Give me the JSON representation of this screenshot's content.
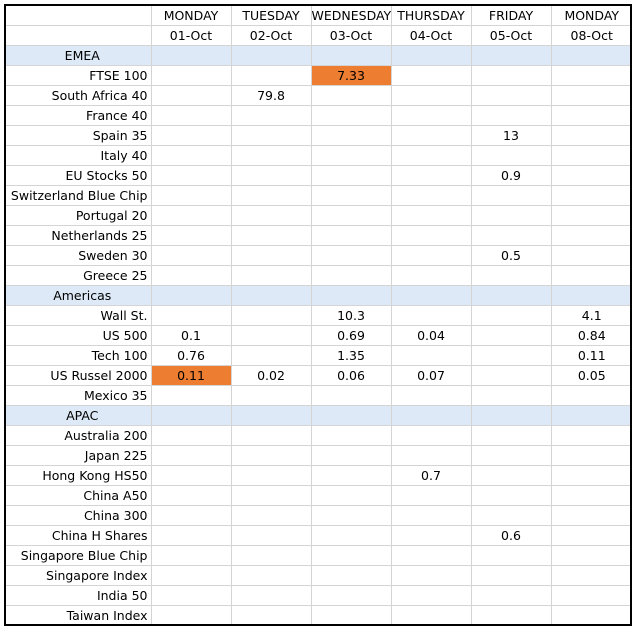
{
  "header": {
    "days": [
      "MONDAY",
      "TUESDAY",
      "WEDNESDAY",
      "THURSDAY",
      "FRIDAY",
      "MONDAY"
    ],
    "dates": [
      "01-Oct",
      "02-Oct",
      "03-Oct",
      "04-Oct",
      "05-Oct",
      "08-Oct"
    ]
  },
  "rows": [
    {
      "label": "EMEA",
      "section": true,
      "cells": [
        "",
        "",
        "",
        "",
        "",
        ""
      ]
    },
    {
      "label": "FTSE 100",
      "cells": [
        "",
        "",
        "7.33",
        "",
        "",
        ""
      ],
      "highlight": [
        2
      ]
    },
    {
      "label": "South Africa 40",
      "cells": [
        "",
        "79.8",
        "",
        "",
        "",
        ""
      ]
    },
    {
      "label": "France 40",
      "cells": [
        "",
        "",
        "",
        "",
        "",
        ""
      ]
    },
    {
      "label": "Spain 35",
      "cells": [
        "",
        "",
        "",
        "",
        "13",
        ""
      ]
    },
    {
      "label": "Italy 40",
      "cells": [
        "",
        "",
        "",
        "",
        "",
        ""
      ]
    },
    {
      "label": "EU Stocks 50",
      "cells": [
        "",
        "",
        "",
        "",
        "0.9",
        ""
      ]
    },
    {
      "label": "Switzerland Blue Chip",
      "cells": [
        "",
        "",
        "",
        "",
        "",
        ""
      ]
    },
    {
      "label": "Portugal 20",
      "cells": [
        "",
        "",
        "",
        "",
        "",
        ""
      ]
    },
    {
      "label": "Netherlands 25",
      "cells": [
        "",
        "",
        "",
        "",
        "",
        ""
      ]
    },
    {
      "label": "Sweden 30",
      "cells": [
        "",
        "",
        "",
        "",
        "0.5",
        ""
      ]
    },
    {
      "label": "Greece 25",
      "cells": [
        "",
        "",
        "",
        "",
        "",
        ""
      ]
    },
    {
      "label": "Americas",
      "section": true,
      "cells": [
        "",
        "",
        "",
        "",
        "",
        ""
      ]
    },
    {
      "label": "Wall St.",
      "cells": [
        "",
        "",
        "10.3",
        "",
        "",
        "4.1"
      ]
    },
    {
      "label": "US 500",
      "cells": [
        "0.1",
        "",
        "0.69",
        "0.04",
        "",
        "0.84"
      ]
    },
    {
      "label": "Tech 100",
      "cells": [
        "0.76",
        "",
        "1.35",
        "",
        "",
        "0.11"
      ]
    },
    {
      "label": "US Russel 2000",
      "cells": [
        "0.11",
        "0.02",
        "0.06",
        "0.07",
        "",
        "0.05"
      ],
      "highlight": [
        0
      ]
    },
    {
      "label": "Mexico 35",
      "cells": [
        "",
        "",
        "",
        "",
        "",
        ""
      ]
    },
    {
      "label": "APAC",
      "section": true,
      "cells": [
        "",
        "",
        "",
        "",
        "",
        ""
      ]
    },
    {
      "label": "Australia 200",
      "cells": [
        "",
        "",
        "",
        "",
        "",
        ""
      ]
    },
    {
      "label": "Japan 225",
      "cells": [
        "",
        "",
        "",
        "",
        "",
        ""
      ]
    },
    {
      "label": "Hong Kong HS50",
      "cells": [
        "",
        "",
        "",
        "0.7",
        "",
        ""
      ]
    },
    {
      "label": "China A50",
      "cells": [
        "",
        "",
        "",
        "",
        "",
        ""
      ]
    },
    {
      "label": "China 300",
      "cells": [
        "",
        "",
        "",
        "",
        "",
        ""
      ]
    },
    {
      "label": "China H Shares",
      "cells": [
        "",
        "",
        "",
        "",
        "0.6",
        ""
      ]
    },
    {
      "label": "Singapore Blue Chip",
      "cells": [
        "",
        "",
        "",
        "",
        "",
        ""
      ]
    },
    {
      "label": "Singapore Index",
      "cells": [
        "",
        "",
        "",
        "",
        "",
        ""
      ]
    },
    {
      "label": "India 50",
      "cells": [
        "",
        "",
        "",
        "",
        "",
        ""
      ]
    },
    {
      "label": "Taiwan Index",
      "cells": [
        "",
        "",
        "",
        "",
        "",
        ""
      ]
    }
  ],
  "colors": {
    "section_fill": "#dde9f6",
    "highlight_fill": "#ed7d31",
    "gridline": "#d4d4d4"
  }
}
